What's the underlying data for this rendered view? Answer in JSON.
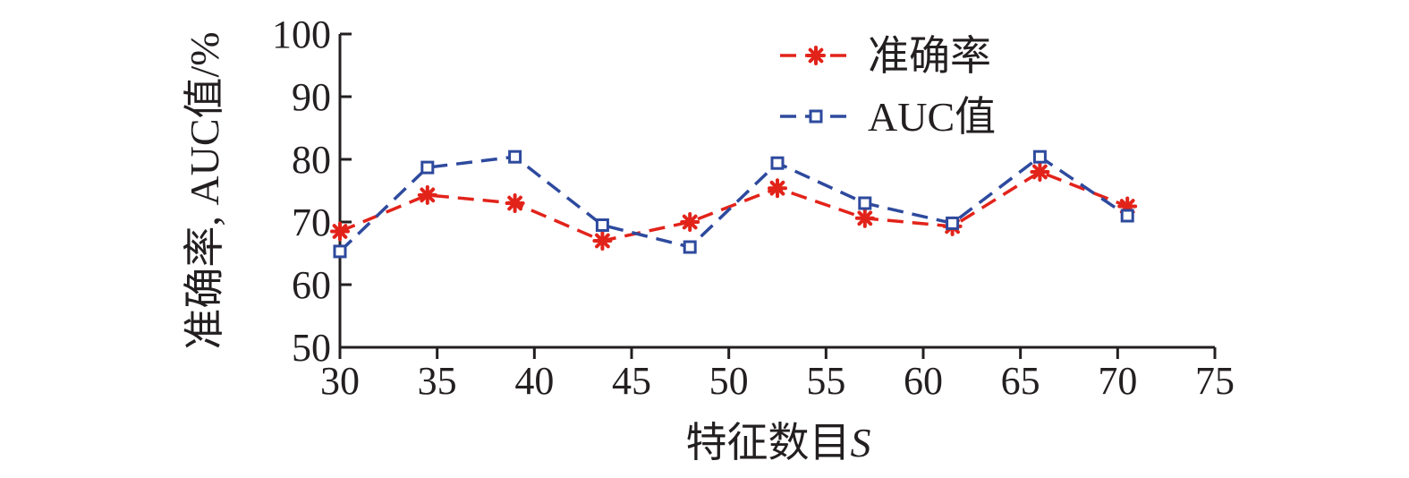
{
  "chart_data": {
    "type": "line",
    "title": "",
    "xlabel": "特征数目",
    "xlabel_var": "S",
    "ylabel": "准确率, AUC值/%",
    "xlim": [
      30,
      75
    ],
    "ylim": [
      50,
      100
    ],
    "xticks": [
      30,
      35,
      40,
      45,
      50,
      55,
      60,
      65,
      70,
      75
    ],
    "yticks": [
      50,
      60,
      70,
      80,
      90,
      100
    ],
    "x": [
      30,
      34.5,
      39,
      43.5,
      48,
      52.5,
      57,
      61.5,
      66,
      70.5
    ],
    "legend_position": "top-right",
    "grid": false,
    "series": [
      {
        "name": "准确率",
        "color": "#e2231a",
        "marker": "asterisk",
        "line_style": "dashed",
        "values": [
          68.5,
          74.3,
          73.0,
          67.0,
          70.0,
          75.4,
          70.6,
          69.3,
          78.0,
          72.5
        ]
      },
      {
        "name": "AUC值",
        "color": "#2e4a9e",
        "marker": "square",
        "line_style": "dashed",
        "values": [
          65.3,
          78.7,
          80.4,
          69.5,
          66.0,
          79.4,
          73.0,
          69.8,
          80.4,
          71.0
        ]
      }
    ]
  }
}
